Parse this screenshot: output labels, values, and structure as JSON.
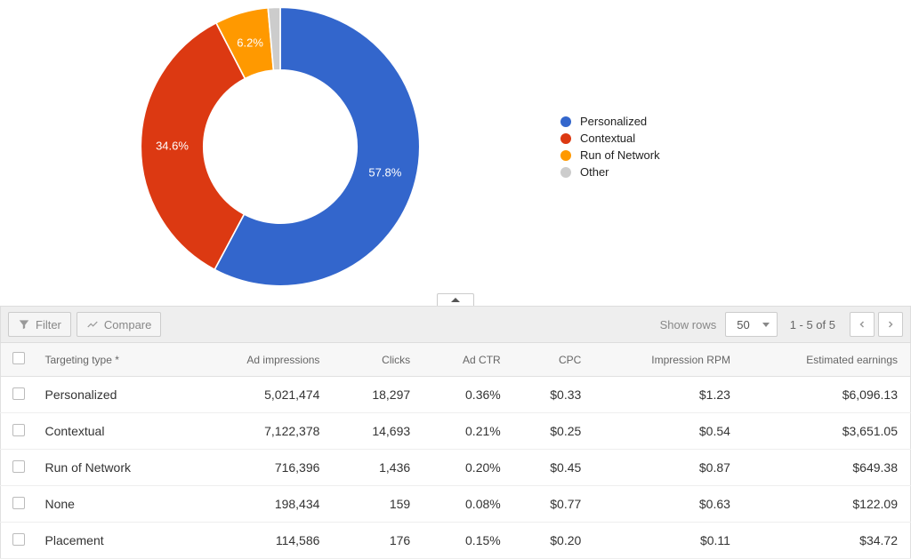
{
  "chart": {
    "type": "donut",
    "inner_radius_ratio": 0.55,
    "background_color": "#ffffff",
    "label_color": "#ffffff",
    "label_fontsize": 13,
    "slices": [
      {
        "name": "Personalized",
        "value": 57.8,
        "label": "57.8%",
        "color": "#3366cc"
      },
      {
        "name": "Contextual",
        "value": 34.6,
        "label": "34.6%",
        "color": "#dc3912"
      },
      {
        "name": "Run of Network",
        "value": 6.2,
        "label": "6.2%",
        "color": "#ff9900"
      },
      {
        "name": "Other",
        "value": 1.4,
        "label": "",
        "color": "#cccccc"
      }
    ],
    "legend": {
      "position": "right",
      "fontsize": 13,
      "items": [
        {
          "label": "Personalized",
          "color": "#3366cc"
        },
        {
          "label": "Contextual",
          "color": "#dc3912"
        },
        {
          "label": "Run of Network",
          "color": "#ff9900"
        },
        {
          "label": "Other",
          "color": "#cccccc"
        }
      ]
    }
  },
  "toolbar": {
    "filter_label": "Filter",
    "compare_label": "Compare",
    "show_rows_label": "Show rows",
    "rows_value": "50",
    "range_text": "1 - 5 of 5"
  },
  "table": {
    "columns": [
      {
        "key": "targeting",
        "label": "Targeting type *",
        "align": "left"
      },
      {
        "key": "impr",
        "label": "Ad impressions",
        "align": "right"
      },
      {
        "key": "clicks",
        "label": "Clicks",
        "align": "right"
      },
      {
        "key": "ctr",
        "label": "Ad CTR",
        "align": "right"
      },
      {
        "key": "cpc",
        "label": "CPC",
        "align": "right"
      },
      {
        "key": "rpm",
        "label": "Impression RPM",
        "align": "right"
      },
      {
        "key": "earn",
        "label": "Estimated earnings",
        "align": "right"
      }
    ],
    "rows": [
      {
        "targeting": "Personalized",
        "impr": "5,021,474",
        "clicks": "18,297",
        "ctr": "0.36%",
        "cpc": "$0.33",
        "rpm": "$1.23",
        "earn": "$6,096.13"
      },
      {
        "targeting": "Contextual",
        "impr": "7,122,378",
        "clicks": "14,693",
        "ctr": "0.21%",
        "cpc": "$0.25",
        "rpm": "$0.54",
        "earn": "$3,651.05"
      },
      {
        "targeting": "Run of Network",
        "impr": "716,396",
        "clicks": "1,436",
        "ctr": "0.20%",
        "cpc": "$0.45",
        "rpm": "$0.87",
        "earn": "$649.38"
      },
      {
        "targeting": "None",
        "impr": "198,434",
        "clicks": "159",
        "ctr": "0.08%",
        "cpc": "$0.77",
        "rpm": "$0.63",
        "earn": "$122.09"
      },
      {
        "targeting": "Placement",
        "impr": "114,586",
        "clicks": "176",
        "ctr": "0.15%",
        "cpc": "$0.20",
        "rpm": "$0.11",
        "earn": "$34.72"
      }
    ]
  }
}
